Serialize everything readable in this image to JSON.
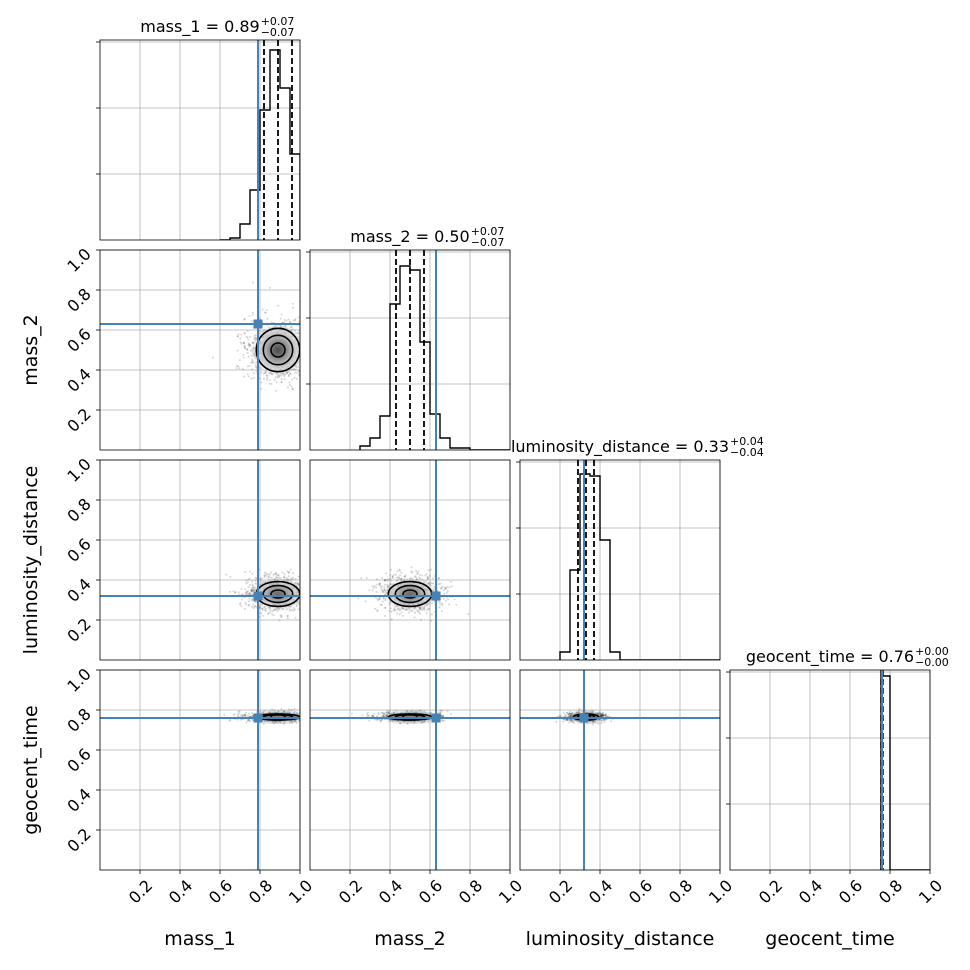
{
  "chart_data": {
    "type": "corner",
    "parameters": [
      "mass_1",
      "mass_2",
      "luminosity_distance",
      "geocent_time"
    ],
    "truths": [
      0.79,
      0.63,
      0.32,
      0.76
    ],
    "truth_color": "#4682b4",
    "axis_range": [
      0,
      1
    ],
    "tick_values": [
      0.2,
      0.4,
      0.6,
      0.8,
      1.0
    ],
    "tick_labels": [
      "0.2",
      "0.4",
      "0.6",
      "0.8",
      "1.0"
    ],
    "grid": true,
    "titles": [
      {
        "text": "mass_1 = 0.89",
        "plus": "+0.07",
        "minus": "−0.07"
      },
      {
        "text": "mass_2 = 0.50",
        "plus": "+0.07",
        "minus": "−0.07"
      },
      {
        "text": "luminosity_distance = 0.33",
        "plus": "+0.04",
        "minus": "−0.04"
      },
      {
        "text": "geocent_time = 0.76",
        "plus": "+0.00",
        "minus": "−0.00"
      }
    ],
    "diagonals": [
      {
        "type": "histogram",
        "bin_edges": [
          0.6,
          0.65,
          0.7,
          0.75,
          0.8,
          0.85,
          0.9,
          0.95,
          1.0
        ],
        "counts": [
          0,
          0.01,
          0.08,
          0.25,
          0.65,
          0.95,
          0.76,
          0.43
        ],
        "quantiles": [
          0.82,
          0.89,
          0.96
        ]
      },
      {
        "type": "histogram",
        "bin_edges": [
          0.25,
          0.3,
          0.35,
          0.4,
          0.45,
          0.5,
          0.55,
          0.6,
          0.65,
          0.7,
          0.75,
          0.8,
          0.85
        ],
        "counts": [
          0.02,
          0.06,
          0.17,
          0.73,
          0.92,
          0.9,
          0.54,
          0.18,
          0.06,
          0.01,
          0.01,
          0
        ],
        "quantiles": [
          0.43,
          0.5,
          0.57
        ]
      },
      {
        "type": "histogram",
        "bin_edges": [
          0.2,
          0.25,
          0.3,
          0.35,
          0.4,
          0.45,
          0.5
        ],
        "counts": [
          0.04,
          0.45,
          0.93,
          0.92,
          0.6,
          0.04
        ],
        "quantiles": [
          0.29,
          0.33,
          0.37
        ]
      },
      {
        "type": "histogram",
        "bin_edges": [
          0.755,
          0.765,
          0.8
        ],
        "counts": [
          0.97,
          0.97
        ],
        "quantiles": [
          0.756,
          0.76,
          0.764
        ]
      }
    ],
    "pairs": [
      {
        "x_param": "mass_1",
        "y_param": "mass_2",
        "mean": [
          0.89,
          0.5
        ],
        "sd": [
          0.07,
          0.07
        ]
      },
      {
        "x_param": "mass_1",
        "y_param": "luminosity_distance",
        "mean": [
          0.89,
          0.33
        ],
        "sd": [
          0.07,
          0.04
        ]
      },
      {
        "x_param": "mass_2",
        "y_param": "luminosity_distance",
        "mean": [
          0.5,
          0.33
        ],
        "sd": [
          0.07,
          0.04
        ]
      },
      {
        "x_param": "mass_1",
        "y_param": "geocent_time",
        "mean": [
          0.89,
          0.765
        ],
        "sd": [
          0.07,
          0.01
        ]
      },
      {
        "x_param": "mass_2",
        "y_param": "geocent_time",
        "mean": [
          0.5,
          0.765
        ],
        "sd": [
          0.07,
          0.01
        ]
      },
      {
        "x_param": "luminosity_distance",
        "y_param": "geocent_time",
        "mean": [
          0.33,
          0.765
        ],
        "sd": [
          0.04,
          0.01
        ]
      }
    ]
  }
}
